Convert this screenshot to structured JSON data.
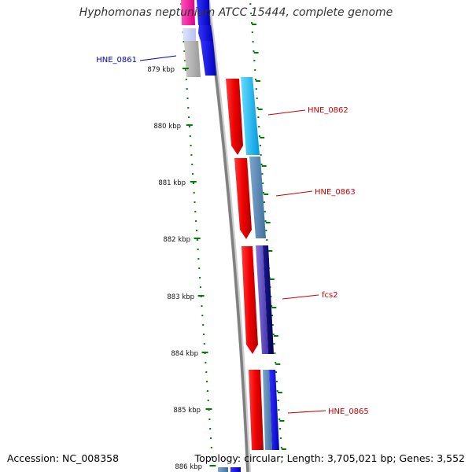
{
  "title": "Hyphomonas neptunium ATCC 15444, complete genome",
  "footer": {
    "accession": "Accession: NC_008358",
    "topology": "Topology: circular; Length: 3,705,021 bp; Genes: 3,552"
  },
  "scale": {
    "unit": "kbp",
    "ticks": [
      {
        "kbp": 879,
        "label": "879 kbp"
      },
      {
        "kbp": 880,
        "label": "880 kbp"
      },
      {
        "kbp": 881,
        "label": "881 kbp"
      },
      {
        "kbp": 882,
        "label": "882 kbp"
      },
      {
        "kbp": 883,
        "label": "883 kbp"
      },
      {
        "kbp": 884,
        "label": "884 kbp"
      },
      {
        "kbp": 885,
        "label": "885 kbp"
      },
      {
        "kbp": 886,
        "label": "886 kbp"
      }
    ]
  },
  "gene_labels": [
    {
      "name": "HNE_0861",
      "color": "#0000cc",
      "side": "left"
    },
    {
      "name": "HNE_0862",
      "color": "#cc0000",
      "side": "right"
    },
    {
      "name": "HNE_0863",
      "color": "#cc0000",
      "side": "right"
    },
    {
      "name": "fcs2",
      "color": "#cc0000",
      "side": "right"
    },
    {
      "name": "HNE_0865",
      "color": "#cc0000",
      "side": "right"
    }
  ],
  "colors": {
    "backbone": "#888888",
    "tick_green": "#008000",
    "forward_gene": "#ee0000",
    "reverse_gene": "#0000ee",
    "magenta_gene": "#ee1199",
    "cyan_gene": "#22bbff",
    "steel_gene": "#5588bb",
    "navy_gene": "#000077",
    "violet_gene": "#6655cc",
    "grey_gene": "#aaaaaa"
  }
}
